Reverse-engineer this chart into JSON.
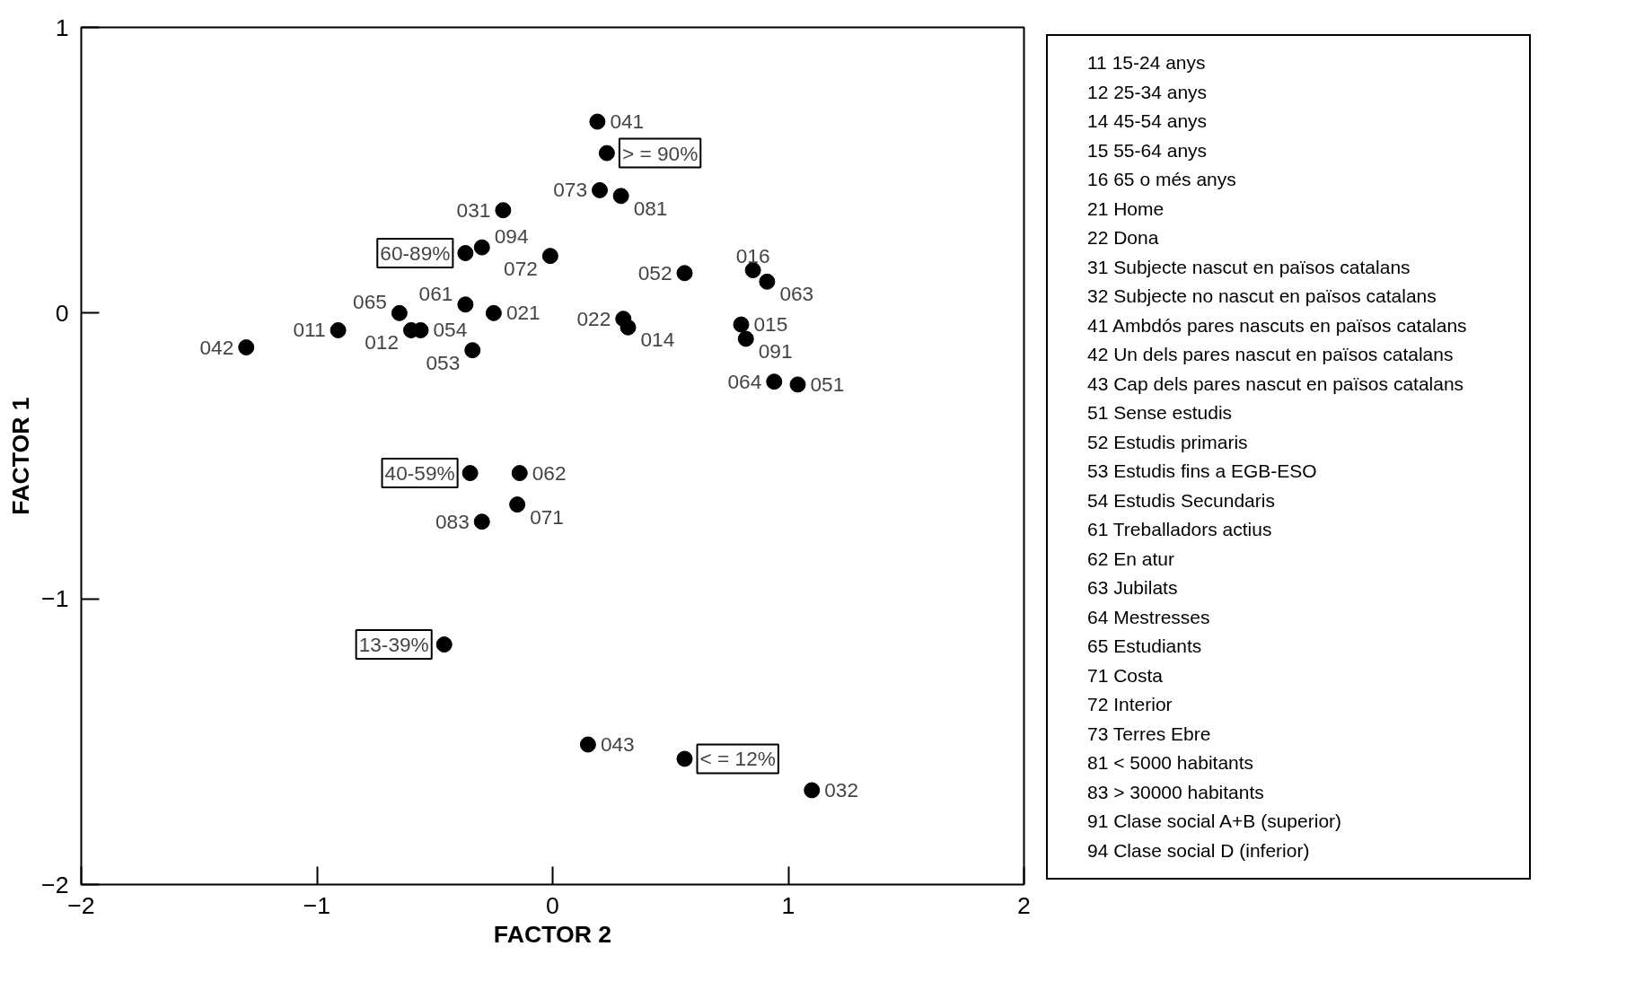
{
  "chart_data": {
    "type": "scatter",
    "xlabel": "FACTOR 2",
    "ylabel": "FACTOR 1",
    "xlim": [
      -2,
      2
    ],
    "ylim": [
      -2,
      1
    ],
    "xticks": [
      -2,
      -1,
      0,
      1,
      2
    ],
    "yticks": [
      -2,
      -1,
      0,
      1
    ],
    "grid": false,
    "marker": "circle",
    "series": [
      {
        "color": "#000000",
        "x": [
          0.19,
          0.2,
          0.29,
          -0.21,
          -0.3,
          -0.01,
          0.56,
          0.85,
          0.91,
          -0.65,
          -0.37,
          -0.25,
          0.3,
          0.32,
          0.8,
          0.82,
          -0.91,
          -0.6,
          -0.56,
          -1.3,
          -0.34,
          0.94,
          1.04,
          -0.14,
          -0.15,
          -0.3,
          0.15,
          1.1
        ],
        "values": [
          0.67,
          0.43,
          0.41,
          0.36,
          0.23,
          0.2,
          0.14,
          0.15,
          0.11,
          0.0,
          0.03,
          0.0,
          -0.02,
          -0.05,
          -0.04,
          -0.09,
          -0.06,
          -0.06,
          -0.06,
          -0.12,
          -0.13,
          -0.24,
          -0.25,
          -0.56,
          -0.67,
          -0.73,
          -1.51,
          -1.67
        ]
      },
      {
        "color": "#000000",
        "x": [
          0.23,
          -0.37,
          -0.35,
          -0.46,
          0.56
        ],
        "values": [
          0.56,
          0.21,
          -0.56,
          -1.16,
          -1.56
        ]
      }
    ],
    "annotations": [
      {
        "text": "041",
        "x": 0.19,
        "y": 0.67
      },
      {
        "text": "073",
        "x": 0.2,
        "y": 0.43
      },
      {
        "text": "081",
        "x": 0.29,
        "y": 0.41
      },
      {
        "text": "031",
        "x": -0.21,
        "y": 0.36
      },
      {
        "text": "094",
        "x": -0.3,
        "y": 0.23
      },
      {
        "text": "072",
        "x": -0.01,
        "y": 0.2
      },
      {
        "text": "052",
        "x": 0.56,
        "y": 0.14
      },
      {
        "text": "016",
        "x": 0.85,
        "y": 0.15
      },
      {
        "text": "063",
        "x": 0.91,
        "y": 0.11
      },
      {
        "text": "065",
        "x": -0.65,
        "y": 0.0
      },
      {
        "text": "061",
        "x": -0.37,
        "y": 0.03
      },
      {
        "text": "021",
        "x": -0.25,
        "y": 0.0
      },
      {
        "text": "022",
        "x": 0.3,
        "y": -0.02
      },
      {
        "text": "014",
        "x": 0.32,
        "y": -0.05
      },
      {
        "text": "015",
        "x": 0.8,
        "y": -0.04
      },
      {
        "text": "091",
        "x": 0.82,
        "y": -0.09
      },
      {
        "text": "011",
        "x": -0.91,
        "y": -0.06
      },
      {
        "text": "012",
        "x": -0.6,
        "y": -0.06
      },
      {
        "text": "054",
        "x": -0.56,
        "y": -0.06
      },
      {
        "text": "042",
        "x": -1.3,
        "y": -0.12
      },
      {
        "text": "053",
        "x": -0.34,
        "y": -0.13
      },
      {
        "text": "064",
        "x": 0.94,
        "y": -0.24
      },
      {
        "text": "051",
        "x": 1.04,
        "y": -0.25
      },
      {
        "text": "062",
        "x": -0.14,
        "y": -0.56
      },
      {
        "text": "071",
        "x": -0.15,
        "y": -0.67
      },
      {
        "text": "083",
        "x": -0.3,
        "y": -0.73
      },
      {
        "text": "043",
        "x": 0.15,
        "y": -1.51
      },
      {
        "text": "032",
        "x": 1.1,
        "y": -1.67
      },
      {
        "text": "> = 90%",
        "x": 0.23,
        "y": 0.56
      },
      {
        "text": "60-89%",
        "x": -0.37,
        "y": 0.21
      },
      {
        "text": "40-59%",
        "x": -0.35,
        "y": -0.56
      },
      {
        "text": "13-39%",
        "x": -0.46,
        "y": -1.16
      },
      {
        "text": "< = 12%",
        "x": 0.56,
        "y": -1.56
      },
      "11 15-24 anys",
      "12 25-34 anys",
      "14 45-54 anys",
      "15 55-64 anys",
      "16 65 o més anys",
      "21 Home",
      "22 Dona",
      "31 Subjecte nascut en països catalans",
      "32 Subjecte no nascut en països catalans",
      "41 Ambdós pares nascuts en països catalans",
      "42 Un dels pares nascut en països catalans",
      "43 Cap dels pares nascut en països catalans",
      "51 Sense estudis",
      "52 Estudis primaris",
      "53 Estudis fins a EGB-ESO",
      "54 Estudis Secundaris",
      "61 Treballadors actius",
      "62 En atur",
      "63 Jubilats",
      "64 Mestresses",
      "65 Estudiants",
      "71 Costa",
      "72 Interior",
      "73 Terres Ebre",
      "81 < 5000 habitants",
      "83 > 30000 habitants",
      "91 Clase social A+B (superior)",
      "94 Clase social D (inferior)"
    ]
  }
}
